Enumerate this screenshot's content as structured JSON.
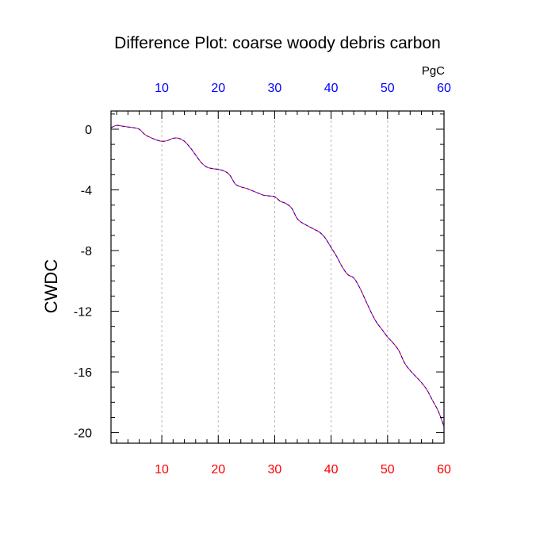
{
  "chart_data": {
    "type": "line",
    "title": "Difference Plot: coarse woody debris carbon",
    "ylabel": "CWDC",
    "xlabel": "",
    "top_axis_unit": "PgC",
    "xlim": [
      1,
      60
    ],
    "ylim": [
      -20.7,
      1.2
    ],
    "x_ticks": [
      10,
      20,
      30,
      40,
      50,
      60
    ],
    "x_tick_labels": [
      "10",
      "20",
      "30",
      "40",
      "50",
      "60"
    ],
    "y_ticks": [
      0,
      -4,
      -8,
      -12,
      -16,
      -20
    ],
    "y_tick_labels": [
      "0",
      "-4",
      "-8",
      "-12",
      "-16",
      "-20"
    ],
    "grid": "vertical-dashed",
    "colors": {
      "top_axis_labels": "#0000ff",
      "bottom_axis_labels": "#ff0000",
      "series_a": "#ff0000",
      "series_b": "#0000ff",
      "grid": "#b8b8b8"
    },
    "series": [
      {
        "color": "#ff0000",
        "style": "solid",
        "x": [
          1,
          2,
          3,
          4,
          5,
          6,
          7,
          8,
          9,
          10,
          11,
          12,
          13,
          14,
          15,
          16,
          17,
          18,
          19,
          20,
          21,
          22,
          23,
          24,
          25,
          26,
          27,
          28,
          29,
          30,
          31,
          32,
          33,
          34,
          35,
          36,
          37,
          38,
          39,
          40,
          41,
          42,
          43,
          44,
          45,
          46,
          47,
          48,
          49,
          50,
          51,
          52,
          53,
          54,
          55,
          56,
          57,
          58,
          59,
          60
        ],
        "y": [
          0.1,
          0.25,
          0.2,
          0.15,
          0.1,
          0.0,
          -0.35,
          -0.55,
          -0.7,
          -0.8,
          -0.75,
          -0.6,
          -0.6,
          -0.8,
          -1.2,
          -1.7,
          -2.2,
          -2.5,
          -2.6,
          -2.65,
          -2.75,
          -3.0,
          -3.6,
          -3.8,
          -3.9,
          -4.05,
          -4.2,
          -4.35,
          -4.4,
          -4.45,
          -4.75,
          -4.9,
          -5.2,
          -5.9,
          -6.2,
          -6.4,
          -6.6,
          -6.8,
          -7.2,
          -7.8,
          -8.4,
          -9.1,
          -9.6,
          -9.8,
          -10.4,
          -11.2,
          -12.0,
          -12.7,
          -13.2,
          -13.7,
          -14.1,
          -14.6,
          -15.4,
          -15.9,
          -16.3,
          -16.7,
          -17.2,
          -17.9,
          -18.6,
          -19.6
        ]
      },
      {
        "color": "#0000ff",
        "style": "dashed",
        "x": [
          1,
          2,
          3,
          4,
          5,
          6,
          7,
          8,
          9,
          10,
          11,
          12,
          13,
          14,
          15,
          16,
          17,
          18,
          19,
          20,
          21,
          22,
          23,
          24,
          25,
          26,
          27,
          28,
          29,
          30,
          31,
          32,
          33,
          34,
          35,
          36,
          37,
          38,
          39,
          40,
          41,
          42,
          43,
          44,
          45,
          46,
          47,
          48,
          49,
          50,
          51,
          52,
          53,
          54,
          55,
          56,
          57,
          58,
          59,
          60
        ],
        "y": [
          0.1,
          0.25,
          0.2,
          0.15,
          0.1,
          0.0,
          -0.35,
          -0.55,
          -0.7,
          -0.8,
          -0.75,
          -0.6,
          -0.6,
          -0.8,
          -1.2,
          -1.7,
          -2.2,
          -2.5,
          -2.6,
          -2.65,
          -2.75,
          -3.0,
          -3.6,
          -3.8,
          -3.9,
          -4.05,
          -4.2,
          -4.35,
          -4.4,
          -4.45,
          -4.75,
          -4.9,
          -5.2,
          -5.9,
          -6.2,
          -6.4,
          -6.6,
          -6.8,
          -7.2,
          -7.8,
          -8.4,
          -9.1,
          -9.6,
          -9.8,
          -10.4,
          -11.2,
          -12.0,
          -12.7,
          -13.2,
          -13.7,
          -14.1,
          -14.6,
          -15.4,
          -15.9,
          -16.3,
          -16.7,
          -17.2,
          -17.9,
          -18.6,
          -19.6
        ]
      }
    ]
  }
}
